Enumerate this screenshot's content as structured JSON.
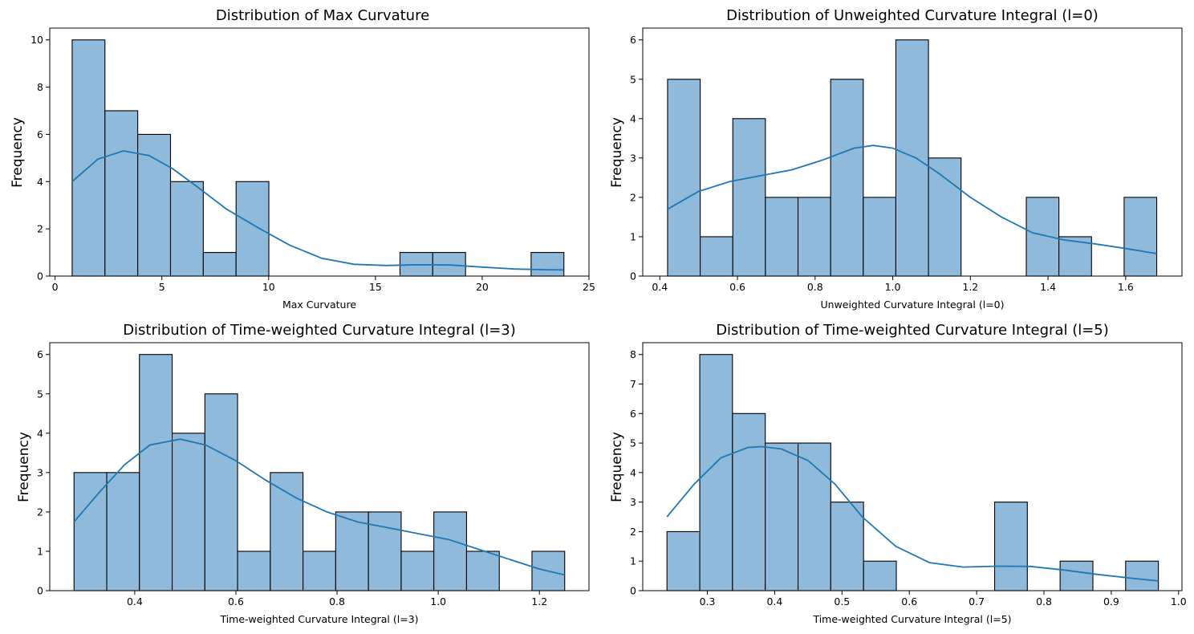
{
  "chart_data": [
    {
      "type": "bar",
      "title": "Distribution of Max Curvature",
      "xlabel": "Max Curvature",
      "ylabel": "Frequency",
      "xlim": [
        -0.25,
        25.0
      ],
      "ylim": [
        0,
        10.5
      ],
      "xticks": [
        0,
        5,
        10,
        15,
        20,
        25
      ],
      "xtick_labels": [
        "0",
        "5",
        "10",
        "15",
        "20",
        "25"
      ],
      "yticks": [
        0,
        2,
        4,
        6,
        8,
        10
      ],
      "ytick_labels": [
        "0",
        "2",
        "4",
        "6",
        "8",
        "10"
      ],
      "bin_edges": [
        0.8,
        2.335,
        3.87,
        5.405,
        6.94,
        8.475,
        10.01,
        11.545,
        13.08,
        14.615,
        16.15,
        17.685,
        19.22,
        20.755,
        22.29,
        23.825
      ],
      "counts": [
        10,
        7,
        6,
        4,
        1,
        4,
        0,
        0,
        0,
        0,
        1,
        1,
        0,
        0,
        1
      ],
      "kde": {
        "x": [
          0.8,
          2.0,
          3.2,
          4.4,
          5.5,
          6.7,
          8.0,
          9.5,
          11.0,
          12.5,
          14.0,
          15.5,
          17.0,
          18.5,
          20.0,
          21.5,
          23.0,
          23.8
        ],
        "y": [
          4.0,
          4.95,
          5.3,
          5.1,
          4.55,
          3.75,
          2.85,
          2.05,
          1.3,
          0.75,
          0.5,
          0.45,
          0.48,
          0.47,
          0.38,
          0.3,
          0.27,
          0.26
        ]
      }
    },
    {
      "type": "bar",
      "title": "Distribution of Unweighted Curvature Integral (l=0)",
      "xlabel": "Unweighted Curvature Integral (l=0)",
      "ylabel": "Frequency",
      "xlim": [
        0.356,
        1.745
      ],
      "ylim": [
        0,
        6.3
      ],
      "xticks": [
        0.4,
        0.6,
        0.8,
        1.0,
        1.2,
        1.4,
        1.6
      ],
      "xtick_labels": [
        "0.4",
        "0.6",
        "0.8",
        "1.0",
        "1.2",
        "1.4",
        "1.6"
      ],
      "yticks": [
        0,
        1,
        2,
        3,
        4,
        5,
        6
      ],
      "ytick_labels": [
        "0",
        "1",
        "2",
        "3",
        "4",
        "5",
        "6"
      ],
      "bin_edges": [
        0.42,
        0.504,
        0.588,
        0.672,
        0.756,
        0.84,
        0.924,
        1.008,
        1.092,
        1.176,
        1.26,
        1.344,
        1.428,
        1.512,
        1.596,
        1.68
      ],
      "counts": [
        5,
        1,
        4,
        2,
        2,
        5,
        2,
        6,
        3,
        0,
        0,
        2,
        1,
        0,
        2
      ],
      "kde": {
        "x": [
          0.42,
          0.5,
          0.58,
          0.66,
          0.74,
          0.82,
          0.9,
          0.95,
          1.0,
          1.06,
          1.12,
          1.2,
          1.28,
          1.36,
          1.44,
          1.52,
          1.6,
          1.68
        ],
        "y": [
          1.7,
          2.15,
          2.4,
          2.55,
          2.7,
          2.95,
          3.25,
          3.32,
          3.25,
          3.0,
          2.6,
          2.0,
          1.5,
          1.1,
          0.92,
          0.82,
          0.7,
          0.57
        ]
      }
    },
    {
      "type": "bar",
      "title": "Distribution of Time-weighted Curvature Integral (l=3)",
      "xlabel": "Time-weighted Curvature Integral (l=3)",
      "ylabel": "Frequency",
      "xlim": [
        0.232,
        1.298
      ],
      "ylim": [
        0,
        6.3
      ],
      "xticks": [
        0.4,
        0.6,
        0.8,
        1.0,
        1.2
      ],
      "xtick_labels": [
        "0.4",
        "0.6",
        "0.8",
        "1.0",
        "1.2"
      ],
      "yticks": [
        0,
        1,
        2,
        3,
        4,
        5,
        6
      ],
      "ytick_labels": [
        "0",
        "1",
        "2",
        "3",
        "4",
        "5",
        "6"
      ],
      "bin_edges": [
        0.28,
        0.3447,
        0.4093,
        0.474,
        0.5387,
        0.6033,
        0.668,
        0.7327,
        0.7973,
        0.862,
        0.9267,
        0.9913,
        1.056,
        1.1207,
        1.1853,
        1.25
      ],
      "counts": [
        3,
        3,
        6,
        4,
        5,
        1,
        3,
        1,
        2,
        2,
        1,
        2,
        1,
        0,
        1
      ],
      "kde": {
        "x": [
          0.28,
          0.33,
          0.38,
          0.43,
          0.49,
          0.54,
          0.6,
          0.66,
          0.72,
          0.78,
          0.84,
          0.9,
          0.96,
          1.02,
          1.08,
          1.14,
          1.2,
          1.25
        ],
        "y": [
          1.75,
          2.5,
          3.2,
          3.7,
          3.85,
          3.7,
          3.3,
          2.8,
          2.35,
          2.0,
          1.75,
          1.6,
          1.45,
          1.3,
          1.05,
          0.8,
          0.55,
          0.4
        ]
      }
    },
    {
      "type": "bar",
      "title": "Distribution of Time-weighted Curvature Integral (l=5)",
      "xlabel": "Time-weighted Curvature Integral (l=5)",
      "ylabel": "Frequency",
      "xlim": [
        0.204,
        1.005
      ],
      "ylim": [
        0,
        8.4
      ],
      "xticks": [
        0.3,
        0.4,
        0.5,
        0.6,
        0.7,
        0.8,
        0.9,
        1.0
      ],
      "xtick_labels": [
        "0.3",
        "0.4",
        "0.5",
        "0.6",
        "0.7",
        "0.8",
        "0.9",
        "1.0"
      ],
      "yticks": [
        0,
        1,
        2,
        3,
        4,
        5,
        6,
        7,
        8
      ],
      "ytick_labels": [
        "0",
        "1",
        "2",
        "3",
        "4",
        "5",
        "6",
        "7",
        "8"
      ],
      "bin_edges": [
        0.24,
        0.2887,
        0.3373,
        0.386,
        0.4347,
        0.4833,
        0.532,
        0.5807,
        0.6293,
        0.678,
        0.7267,
        0.7753,
        0.824,
        0.8727,
        0.9213,
        0.97
      ],
      "counts": [
        2,
        8,
        6,
        5,
        5,
        3,
        1,
        0,
        0,
        0,
        3,
        0,
        1,
        0,
        1
      ],
      "kde": {
        "x": [
          0.24,
          0.28,
          0.32,
          0.36,
          0.38,
          0.41,
          0.45,
          0.49,
          0.53,
          0.58,
          0.63,
          0.68,
          0.73,
          0.78,
          0.83,
          0.88,
          0.93,
          0.97
        ],
        "y": [
          2.5,
          3.6,
          4.5,
          4.85,
          4.88,
          4.8,
          4.4,
          3.6,
          2.5,
          1.5,
          0.95,
          0.8,
          0.83,
          0.82,
          0.7,
          0.55,
          0.42,
          0.33
        ]
      }
    }
  ]
}
